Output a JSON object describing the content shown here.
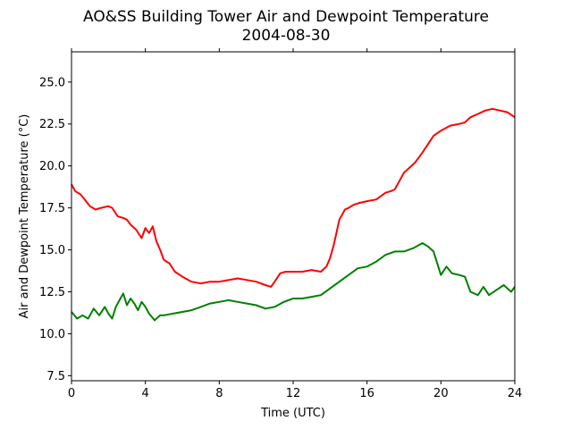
{
  "chart_data": {
    "type": "line",
    "title": "AO&SS Building Tower Air and Dewpoint Temperature",
    "subtitle": "2004-08-30",
    "xlabel": "Time (UTC)",
    "ylabel": "Air and Dewpoint Temperature (°C)",
    "xlim": [
      0,
      24
    ],
    "ylim": [
      7.2,
      26.8
    ],
    "xticks": [
      0,
      4,
      8,
      12,
      16,
      20,
      24
    ],
    "yticks": [
      7.5,
      10.0,
      12.5,
      15.0,
      17.5,
      20.0,
      22.5,
      25.0
    ],
    "grid": false,
    "series": [
      {
        "color": "#ff0000",
        "x": [
          0,
          0.2,
          0.5,
          1.0,
          1.3,
          1.6,
          2.0,
          2.2,
          2.5,
          2.8,
          3.0,
          3.2,
          3.5,
          3.8,
          4.0,
          4.2,
          4.4,
          4.6,
          4.8,
          5.0,
          5.3,
          5.6,
          6.0,
          6.5,
          7.0,
          7.5,
          8.0,
          8.5,
          9.0,
          9.5,
          10.0,
          10.5,
          10.8,
          11.0,
          11.3,
          11.6,
          12.0,
          12.5,
          13.0,
          13.5,
          13.8,
          14.0,
          14.2,
          14.5,
          14.8,
          15.0,
          15.3,
          15.6,
          16.0,
          16.5,
          17.0,
          17.3,
          17.5,
          17.8,
          18.0,
          18.3,
          18.6,
          18.8,
          19.0,
          19.3,
          19.6,
          20.0,
          20.5,
          21.0,
          21.3,
          21.6,
          22.0,
          22.4,
          22.8,
          23.2,
          23.6,
          24.0
        ],
        "y": [
          18.9,
          18.5,
          18.3,
          17.6,
          17.4,
          17.5,
          17.6,
          17.5,
          17.0,
          16.9,
          16.8,
          16.5,
          16.2,
          15.7,
          16.3,
          16.0,
          16.4,
          15.5,
          15.0,
          14.4,
          14.2,
          13.7,
          13.4,
          13.1,
          13.0,
          13.1,
          13.1,
          13.2,
          13.3,
          13.2,
          13.1,
          12.9,
          12.8,
          13.1,
          13.6,
          13.7,
          13.7,
          13.7,
          13.8,
          13.7,
          14.0,
          14.5,
          15.3,
          16.8,
          17.4,
          17.5,
          17.7,
          17.8,
          17.9,
          18.0,
          18.4,
          18.5,
          18.6,
          19.2,
          19.6,
          19.9,
          20.2,
          20.5,
          20.8,
          21.3,
          21.8,
          22.1,
          22.4,
          22.5,
          22.6,
          22.9,
          23.1,
          23.3,
          23.4,
          23.3,
          23.2,
          22.9
        ]
      },
      {
        "color": "#008000",
        "x": [
          0,
          0.3,
          0.6,
          0.9,
          1.2,
          1.5,
          1.8,
          2.0,
          2.2,
          2.4,
          2.6,
          2.8,
          3.0,
          3.2,
          3.4,
          3.6,
          3.8,
          4.0,
          4.2,
          4.5,
          4.8,
          5.0,
          5.5,
          6.0,
          6.5,
          7.0,
          7.5,
          8.0,
          8.5,
          9.0,
          9.5,
          10.0,
          10.5,
          11.0,
          11.5,
          12.0,
          12.5,
          13.0,
          13.5,
          14.0,
          14.5,
          15.0,
          15.5,
          16.0,
          16.5,
          17.0,
          17.5,
          18.0,
          18.5,
          19.0,
          19.3,
          19.6,
          19.8,
          20.0,
          20.3,
          20.6,
          21.0,
          21.3,
          21.6,
          22.0,
          22.3,
          22.6,
          23.0,
          23.4,
          23.8,
          24.0
        ],
        "y": [
          11.3,
          10.9,
          11.1,
          10.9,
          11.5,
          11.1,
          11.6,
          11.2,
          10.9,
          11.6,
          12.0,
          12.4,
          11.7,
          12.1,
          11.8,
          11.4,
          11.9,
          11.6,
          11.2,
          10.8,
          11.1,
          11.1,
          11.2,
          11.3,
          11.4,
          11.6,
          11.8,
          11.9,
          12.0,
          11.9,
          11.8,
          11.7,
          11.5,
          11.6,
          11.9,
          12.1,
          12.1,
          12.2,
          12.3,
          12.7,
          13.1,
          13.5,
          13.9,
          14.0,
          14.3,
          14.7,
          14.9,
          14.9,
          15.1,
          15.4,
          15.2,
          14.9,
          14.2,
          13.5,
          14.0,
          13.6,
          13.5,
          13.4,
          12.5,
          12.3,
          12.8,
          12.3,
          12.6,
          12.9,
          12.5,
          12.8
        ]
      }
    ]
  }
}
